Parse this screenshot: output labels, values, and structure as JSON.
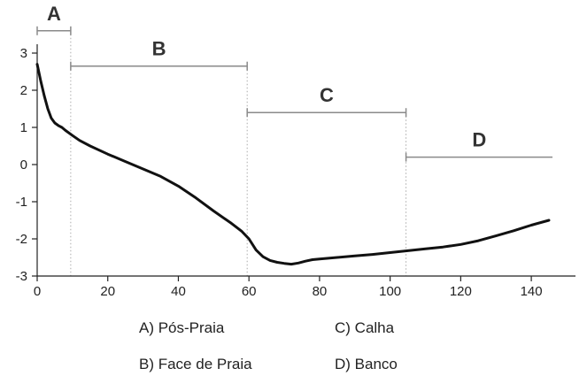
{
  "chart_data": {
    "type": "line",
    "title": "",
    "xlabel": "",
    "ylabel": "",
    "xlim": [
      0,
      147
    ],
    "ylim": [
      -3,
      3.3
    ],
    "x_ticks": [
      0,
      20,
      40,
      60,
      80,
      100,
      120,
      140
    ],
    "y_ticks": [
      -3,
      -2,
      -1,
      0,
      1,
      2,
      3
    ],
    "series": [
      {
        "x": [
          0,
          1,
          2,
          3,
          4,
          5,
          6,
          7,
          8,
          10,
          12,
          15,
          20,
          25,
          30,
          35,
          40,
          45,
          50,
          55,
          58,
          60,
          62,
          64,
          66,
          68,
          70,
          72,
          74,
          76,
          78,
          80,
          85,
          90,
          95,
          100,
          105,
          110,
          115,
          120,
          125,
          130,
          135,
          140,
          145
        ],
        "y": [
          2.7,
          2.25,
          1.85,
          1.5,
          1.25,
          1.12,
          1.05,
          1.0,
          0.92,
          0.78,
          0.65,
          0.5,
          0.28,
          0.08,
          -0.12,
          -0.32,
          -0.58,
          -0.9,
          -1.25,
          -1.58,
          -1.8,
          -2.0,
          -2.3,
          -2.48,
          -2.58,
          -2.63,
          -2.66,
          -2.68,
          -2.65,
          -2.6,
          -2.56,
          -2.54,
          -2.5,
          -2.46,
          -2.42,
          -2.37,
          -2.32,
          -2.27,
          -2.22,
          -2.15,
          -2.05,
          -1.92,
          -1.78,
          -1.63,
          -1.5
        ]
      }
    ],
    "zones": [
      {
        "label": "A",
        "x_start": 0,
        "x_end": 9.5,
        "bracket_y": 3.6
      },
      {
        "label": "B",
        "x_start": 9.5,
        "x_end": 59.5,
        "bracket_y": 2.65
      },
      {
        "label": "C",
        "x_start": 59.5,
        "x_end": 104.5,
        "bracket_y": 1.4
      },
      {
        "label": "D",
        "x_start": 104.5,
        "x_end": 146,
        "bracket_y": 0.2
      }
    ],
    "legend": [
      {
        "text": "A) Pós-Praia"
      },
      {
        "text": "C) Calha"
      },
      {
        "text": "B) Face de Praia"
      },
      {
        "text": "D) Banco"
      }
    ]
  }
}
